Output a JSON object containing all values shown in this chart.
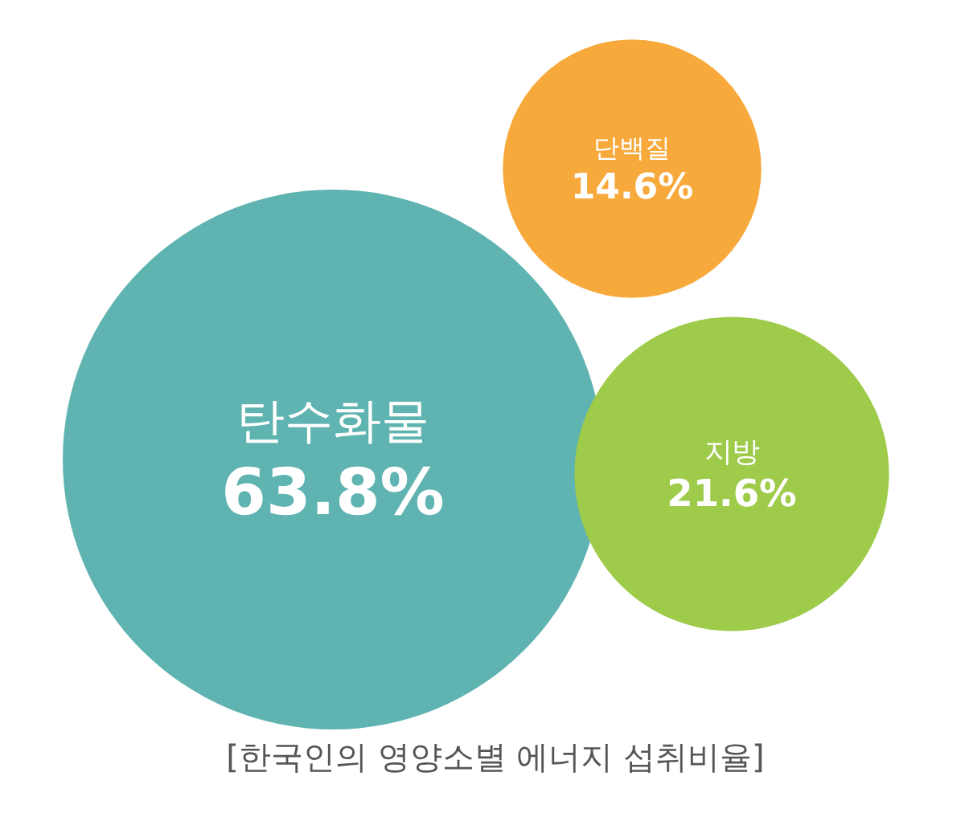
{
  "chart_data": {
    "type": "other",
    "title": "[한국인의 영양소별 에너지 섭취비율]",
    "categories": [
      "탄수화물",
      "단백질",
      "지방"
    ],
    "values": [
      63.8,
      14.6,
      21.6
    ],
    "value_labels": [
      "63.8%",
      "14.6%",
      "21.6%"
    ],
    "colors": [
      "#5fb3b0",
      "#f7a93c",
      "#9fcb4b"
    ]
  }
}
